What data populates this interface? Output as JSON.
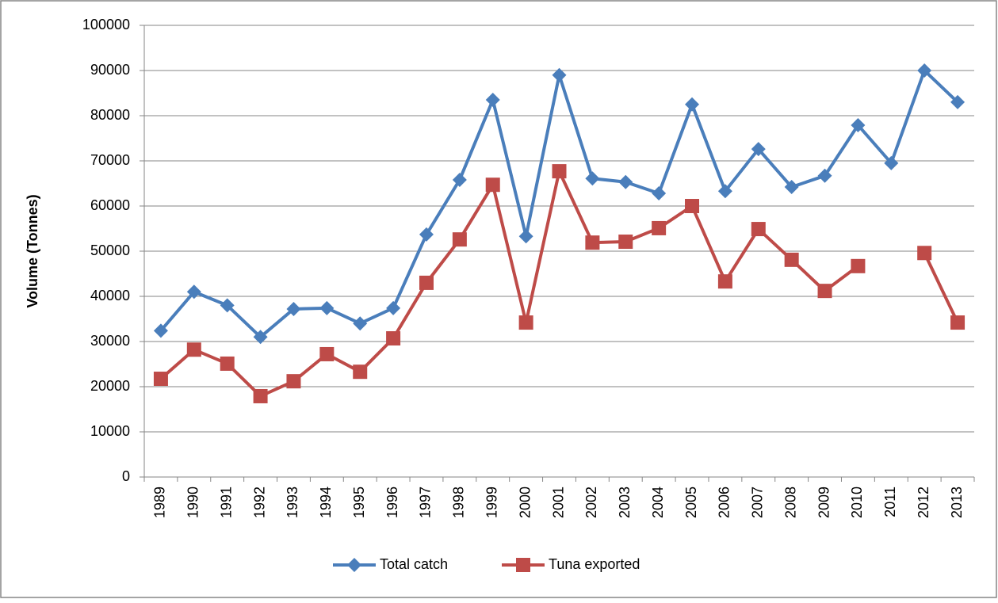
{
  "chart_data": {
    "type": "line",
    "y_label": "Volume (Tonnes)",
    "categories": [
      "1989",
      "1990",
      "1991",
      "1992",
      "1993",
      "1994",
      "1995",
      "1996",
      "1997",
      "1998",
      "1999",
      "2000",
      "2001",
      "2002",
      "2003",
      "2004",
      "2005",
      "2006",
      "2007",
      "2008",
      "2009",
      "2010",
      "2011",
      "2012",
      "2013"
    ],
    "series": [
      {
        "name": "Total catch",
        "color": "#4a7ebb",
        "marker": "diamond",
        "values": [
          32400,
          41000,
          38000,
          31000,
          37200,
          37400,
          34000,
          37400,
          53700,
          65800,
          83500,
          53300,
          89000,
          66100,
          65300,
          62800,
          82500,
          63300,
          72600,
          64200,
          66700,
          77900,
          69500,
          90000,
          83000
        ]
      },
      {
        "name": "Tuna exported",
        "color": "#be4b48",
        "marker": "square",
        "values": [
          21750,
          28200,
          25100,
          17900,
          21200,
          27200,
          23300,
          30700,
          43000,
          52600,
          64700,
          34200,
          67700,
          51900,
          52100,
          55100,
          60000,
          43300,
          54900,
          48100,
          41200,
          46700,
          null,
          49600,
          34200
        ]
      }
    ],
    "ylim": [
      0,
      100000
    ],
    "yticks": [
      0,
      10000,
      20000,
      30000,
      40000,
      50000,
      60000,
      70000,
      80000,
      90000,
      100000
    ],
    "grid": true,
    "legend": "bottom"
  }
}
